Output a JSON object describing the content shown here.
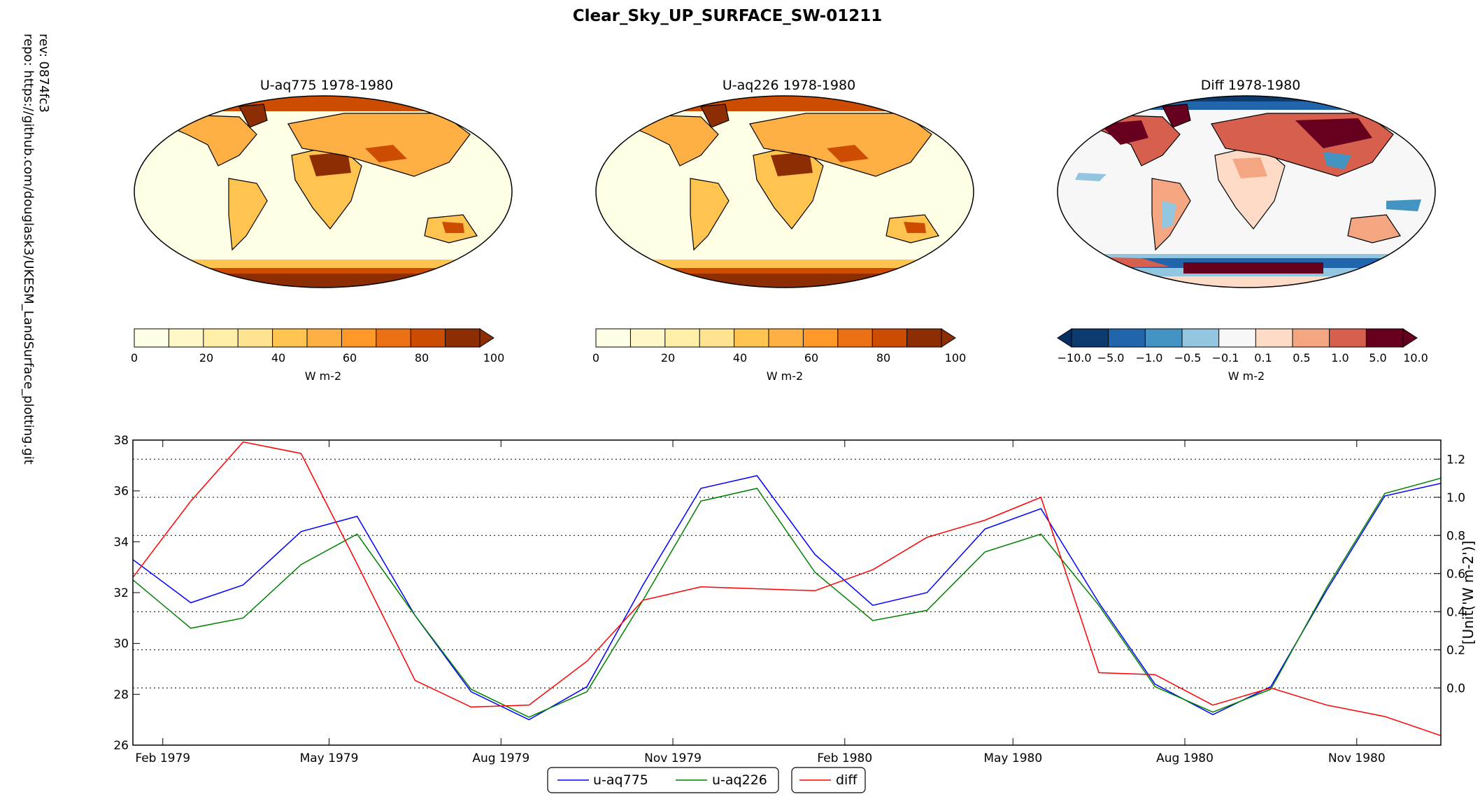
{
  "figure": {
    "title": "Clear_Sky_UP_SURFACE_SW-01211",
    "side_rev": "rev:  0874fc3",
    "side_repo": "repo: https://github.com/douglask3/UKESM_LandSurface_plotting.git"
  },
  "maps": [
    {
      "title": "U-aq775 1978-1980",
      "colorbar": {
        "unit": "W m-2",
        "ticks": [
          "0",
          "20",
          "40",
          "60",
          "80",
          "100"
        ],
        "colors": [
          "#ffffe6",
          "#fff7c8",
          "#ffeea6",
          "#fee390",
          "#fec44f",
          "#feb045",
          "#fe9929",
          "#ec7014",
          "#cc4c02",
          "#8c2d04"
        ]
      }
    },
    {
      "title": "U-aq226 1978-1980",
      "colorbar": {
        "unit": "W m-2",
        "ticks": [
          "0",
          "20",
          "40",
          "60",
          "80",
          "100"
        ],
        "colors": [
          "#ffffe6",
          "#fff7c8",
          "#ffeea6",
          "#fee390",
          "#fec44f",
          "#feb045",
          "#fe9929",
          "#ec7014",
          "#cc4c02",
          "#8c2d04"
        ]
      }
    },
    {
      "title": "Diff 1978-1980",
      "colorbar": {
        "unit": "W m-2",
        "ticks": [
          "−10.0",
          "−5.0",
          "−1.0",
          "−0.5",
          "−0.1",
          "0.1",
          "0.5",
          "1.0",
          "5.0",
          "10.0"
        ],
        "colors": [
          "#0b3a6e",
          "#2166ac",
          "#4393c3",
          "#92c5de",
          "#f7f7f7",
          "#fddbc7",
          "#f4a582",
          "#d6604d",
          "#67001f"
        ]
      }
    }
  ],
  "chart_data": {
    "type": "line",
    "x": [
      "1979-01-16",
      "1979-02-16",
      "1979-03-16",
      "1979-04-16",
      "1979-05-16",
      "1979-06-16",
      "1979-07-16",
      "1979-08-16",
      "1979-09-16",
      "1979-10-16",
      "1979-11-16",
      "1979-12-16",
      "1980-01-16",
      "1980-02-16",
      "1980-03-16",
      "1980-04-16",
      "1980-05-16",
      "1980-06-16",
      "1980-07-16",
      "1980-08-16",
      "1980-09-16",
      "1980-10-16",
      "1980-11-16",
      "1980-12-16"
    ],
    "xticks": [
      {
        "date": "1979-02-01",
        "label": "Feb 1979"
      },
      {
        "date": "1979-05-01",
        "label": "May 1979"
      },
      {
        "date": "1979-08-01",
        "label": "Aug 1979"
      },
      {
        "date": "1979-11-01",
        "label": "Nov 1979"
      },
      {
        "date": "1980-02-01",
        "label": "Feb 1980"
      },
      {
        "date": "1980-05-01",
        "label": "May 1980"
      },
      {
        "date": "1980-08-01",
        "label": "Aug 1980"
      },
      {
        "date": "1980-11-01",
        "label": "Nov 1980"
      }
    ],
    "xlim": [
      "1979-01-16",
      "1980-12-16"
    ],
    "series": [
      {
        "name": "u-aq775",
        "axis": "left",
        "color": "#0000ff",
        "values": [
          33.3,
          31.6,
          32.3,
          34.4,
          35.0,
          31.1,
          28.1,
          27.0,
          28.3,
          32.3,
          36.1,
          36.6,
          33.5,
          31.5,
          32.0,
          34.5,
          35.3,
          31.6,
          28.4,
          27.2,
          28.3,
          32.1,
          35.8,
          36.3
        ]
      },
      {
        "name": "u-aq226",
        "axis": "left",
        "color": "#008000",
        "values": [
          32.5,
          30.6,
          31.0,
          33.1,
          34.3,
          31.1,
          28.2,
          27.1,
          28.1,
          31.7,
          35.6,
          36.1,
          32.8,
          30.9,
          31.3,
          33.6,
          34.3,
          31.5,
          28.3,
          27.3,
          28.2,
          32.2,
          35.9,
          36.5
        ]
      },
      {
        "name": "diff",
        "axis": "right",
        "color": "#ff0000",
        "values": [
          0.58,
          0.98,
          1.29,
          1.23,
          0.65,
          0.04,
          -0.1,
          -0.09,
          0.14,
          0.46,
          0.53,
          0.52,
          0.51,
          0.62,
          0.79,
          0.88,
          1.0,
          0.08,
          0.07,
          -0.09,
          0.0,
          -0.09,
          -0.15,
          -0.25
        ]
      }
    ],
    "ylim_left": [
      26,
      38
    ],
    "yticks_left": [
      "26",
      "28",
      "30",
      "32",
      "34",
      "36",
      "38"
    ],
    "ylim_right": [
      -0.3,
      1.3
    ],
    "yticks_right": [
      "0.0",
      "0.2",
      "0.4",
      "0.6",
      "0.8",
      "1.0",
      "1.2"
    ],
    "ylabel_right": "[Unit('W m-2')]",
    "grid": "horizontal dotted",
    "legend": "bottom-center"
  }
}
